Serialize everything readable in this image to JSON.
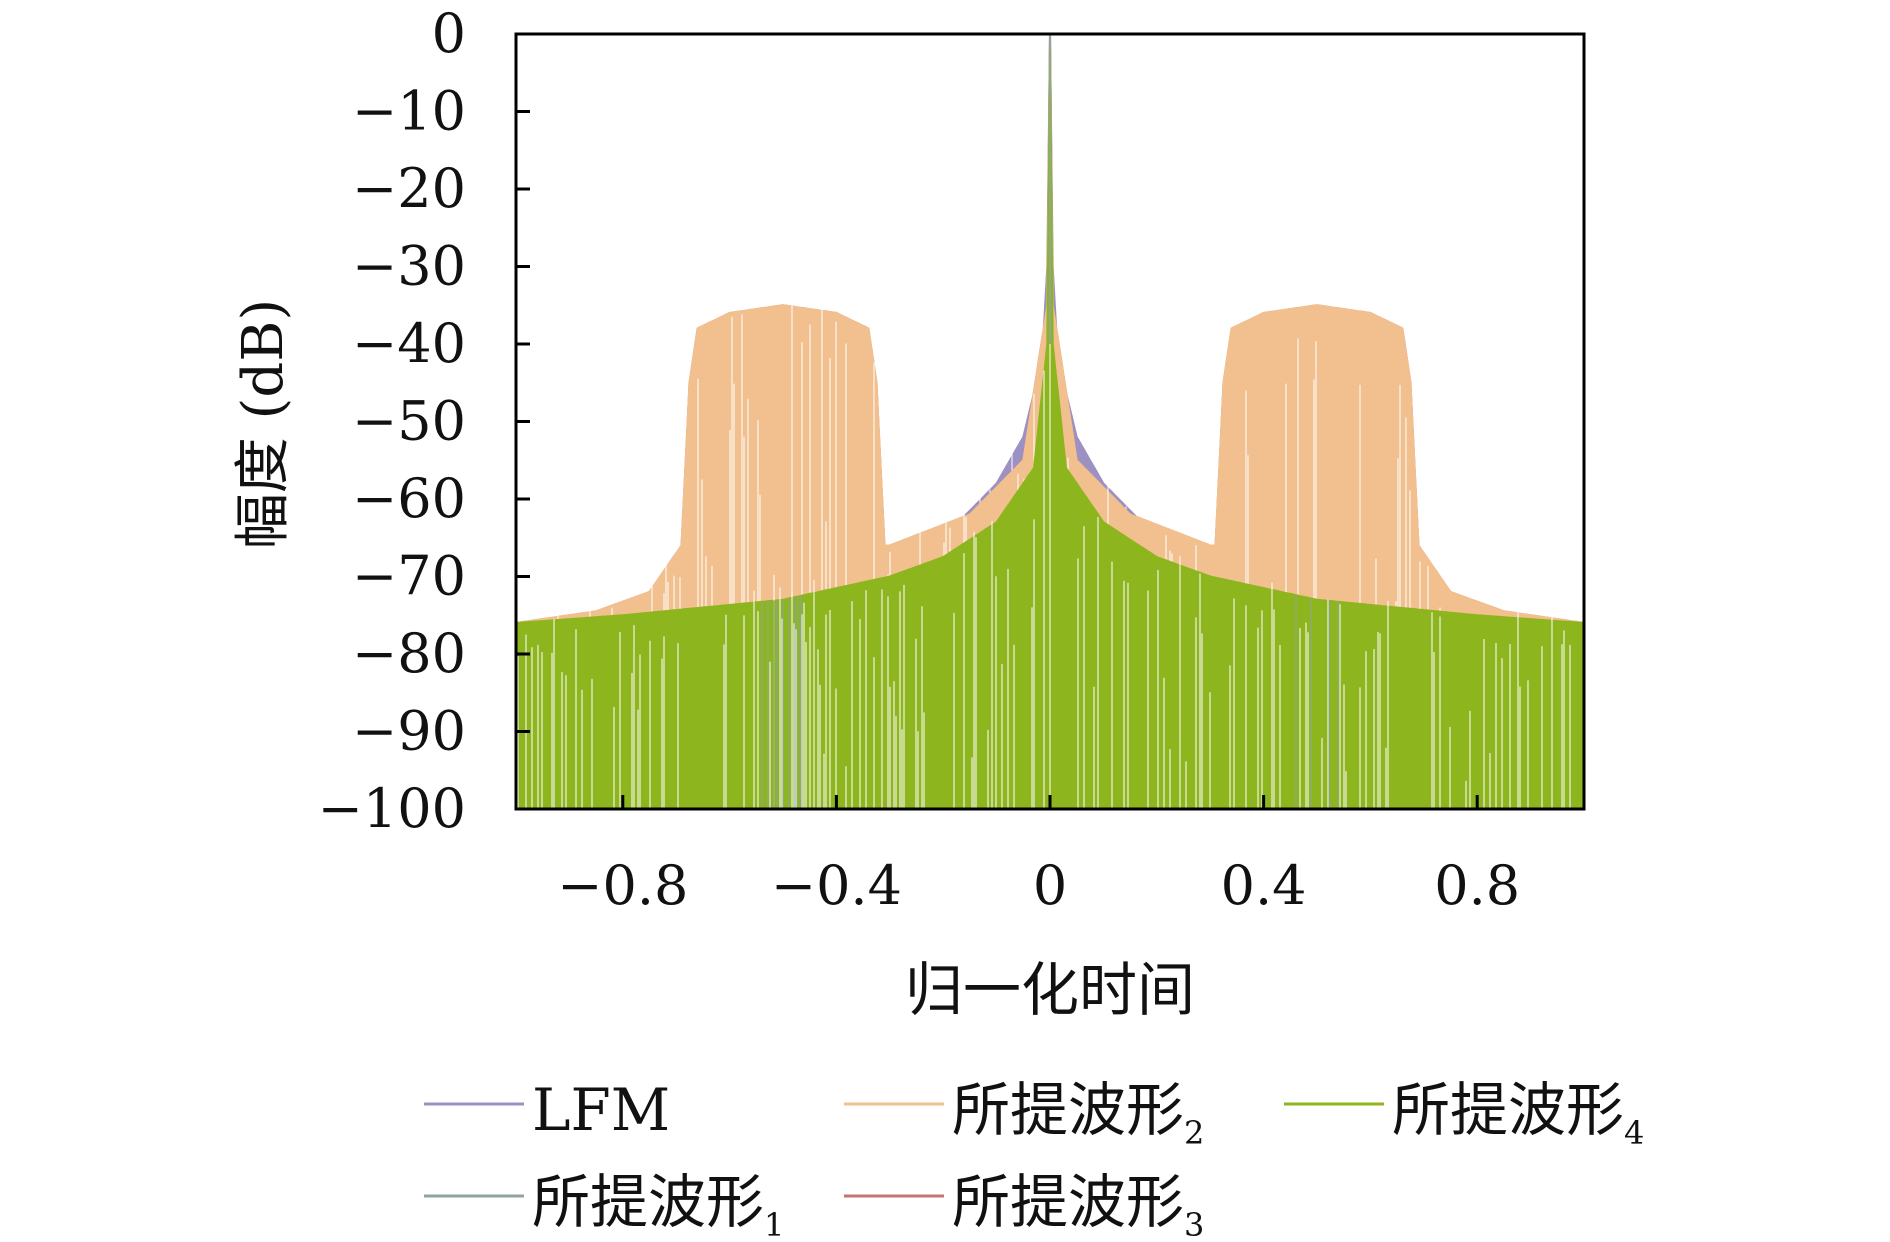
{
  "chart_data": {
    "type": "line",
    "title": "",
    "xlabel": "归一化时间",
    "ylabel": "幅度 (dB)",
    "xlim": [
      -1,
      1
    ],
    "ylim": [
      -100,
      0
    ],
    "xticks": [
      -0.8,
      -0.4,
      0,
      0.4,
      0.8
    ],
    "xtick_labels": [
      "−0.8",
      "−0.4",
      "0",
      "0.4",
      "0.8"
    ],
    "yticks": [
      0,
      -10,
      -20,
      -30,
      -40,
      -50,
      -60,
      -70,
      -80,
      -90,
      -100
    ],
    "ytick_labels": [
      "0",
      "−10",
      "−20",
      "−30",
      "−40",
      "−50",
      "−60",
      "−70",
      "−80",
      "−90",
      "−100"
    ],
    "grid": false,
    "legend_position": "bottom",
    "series": [
      {
        "name": "LFM",
        "sub": "",
        "color": "#9d90c2",
        "envelope": [
          [
            0,
            0
          ],
          [
            0.005,
            -30
          ],
          [
            0.015,
            -42
          ],
          [
            0.05,
            -52
          ],
          [
            0.1,
            -58
          ],
          [
            0.2,
            -65
          ],
          [
            0.3,
            -70
          ],
          [
            0.5,
            -74
          ],
          [
            0.8,
            -75.5
          ],
          [
            1,
            -76
          ]
        ]
      },
      {
        "name": "所提波形",
        "sub": "2",
        "color": "#f2c08e",
        "envelope": [
          [
            0,
            0
          ],
          [
            0.005,
            -35
          ],
          [
            0.05,
            -55
          ],
          [
            0.15,
            -62
          ],
          [
            0.3,
            -66
          ],
          [
            0.31,
            -66
          ],
          [
            0.325,
            -45
          ],
          [
            0.34,
            -38
          ],
          [
            0.4,
            -36
          ],
          [
            0.5,
            -35
          ],
          [
            0.6,
            -36
          ],
          [
            0.66,
            -38
          ],
          [
            0.675,
            -45
          ],
          [
            0.69,
            -66
          ],
          [
            0.75,
            -72
          ],
          [
            0.85,
            -74.5
          ],
          [
            1,
            -76
          ]
        ]
      },
      {
        "name": "所提波形",
        "sub": "4",
        "color": "#8db51d",
        "envelope": [
          [
            0,
            0
          ],
          [
            0.005,
            -40
          ],
          [
            0.03,
            -56
          ],
          [
            0.1,
            -63
          ],
          [
            0.2,
            -67.5
          ],
          [
            0.3,
            -70
          ],
          [
            0.5,
            -73
          ],
          [
            0.8,
            -75
          ],
          [
            1,
            -76
          ]
        ]
      },
      {
        "name": "所提波形",
        "sub": "1",
        "color": "#8fa3a0",
        "envelope": [
          [
            0,
            0
          ],
          [
            0.005,
            -40
          ],
          [
            0.03,
            -56
          ],
          [
            0.1,
            -63
          ],
          [
            0.2,
            -67.5
          ],
          [
            0.3,
            -70
          ],
          [
            0.5,
            -73
          ],
          [
            0.8,
            -75
          ],
          [
            1,
            -76
          ]
        ]
      },
      {
        "name": "所提波形",
        "sub": "3",
        "color": "#c87171",
        "envelope": [
          [
            0,
            0
          ],
          [
            0.005,
            -35
          ],
          [
            0.05,
            -55
          ],
          [
            0.15,
            -62
          ],
          [
            0.3,
            -66
          ],
          [
            0.31,
            -66
          ],
          [
            0.325,
            -45
          ],
          [
            0.34,
            -38
          ],
          [
            0.4,
            -36
          ],
          [
            0.5,
            -35
          ],
          [
            0.6,
            -36
          ],
          [
            0.66,
            -38
          ],
          [
            0.675,
            -45
          ],
          [
            0.69,
            -66
          ],
          [
            0.75,
            -72
          ],
          [
            0.85,
            -74.5
          ],
          [
            1,
            -76
          ]
        ]
      }
    ]
  }
}
